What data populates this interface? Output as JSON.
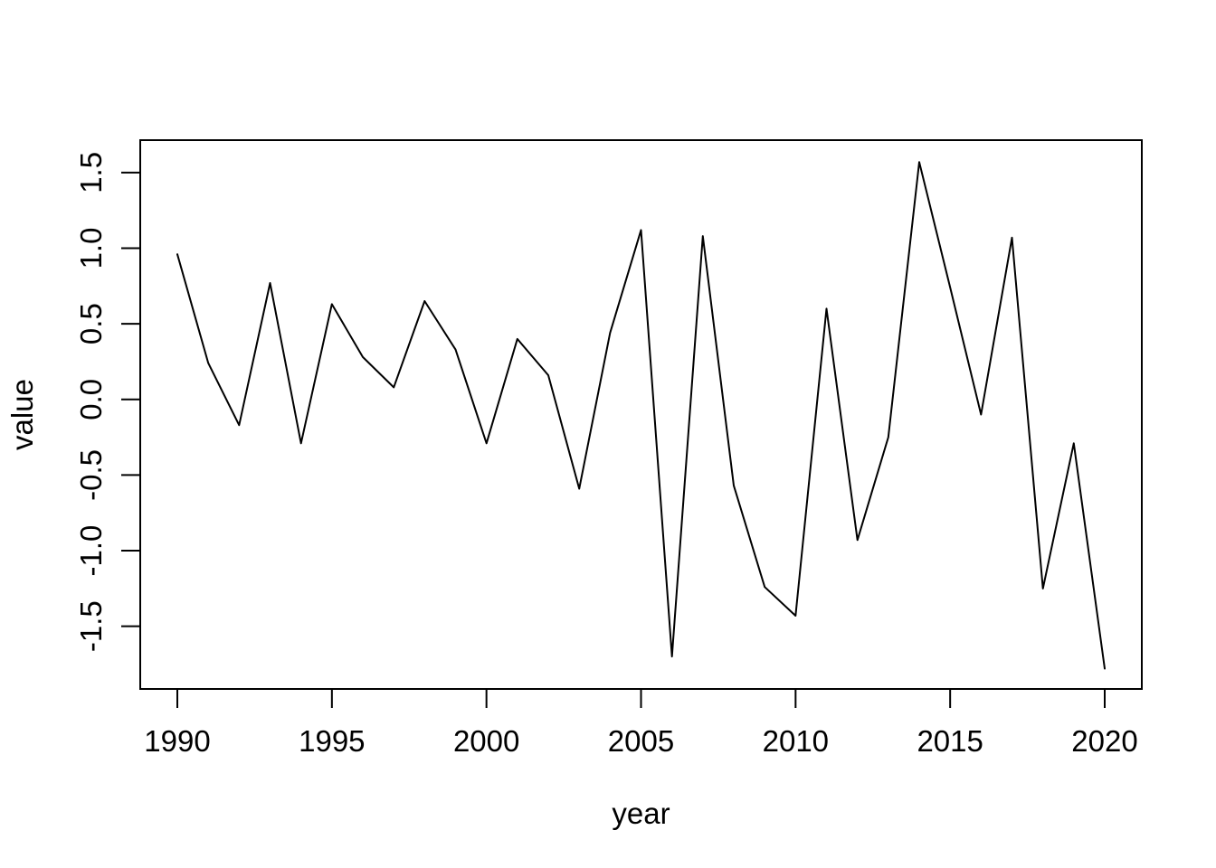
{
  "chart_data": {
    "type": "line",
    "title": "",
    "xlabel": "year",
    "ylabel": "value",
    "x": [
      1990,
      1991,
      1992,
      1993,
      1994,
      1995,
      1996,
      1997,
      1998,
      1999,
      2000,
      2001,
      2002,
      2003,
      2004,
      2005,
      2006,
      2007,
      2008,
      2009,
      2010,
      2011,
      2012,
      2013,
      2014,
      2015,
      2016,
      2017,
      2018,
      2019,
      2020
    ],
    "values": [
      0.96,
      0.24,
      -0.17,
      0.77,
      -0.29,
      0.63,
      0.28,
      0.08,
      0.65,
      0.33,
      -0.29,
      0.4,
      0.16,
      -0.59,
      0.44,
      1.12,
      -1.7,
      1.08,
      -0.57,
      -1.24,
      -1.43,
      0.6,
      -0.93,
      -0.25,
      1.57,
      0.74,
      -0.1,
      1.07,
      -1.25,
      -0.29,
      -1.78
    ],
    "x_ticks": [
      1990,
      1995,
      2000,
      2005,
      2010,
      2015,
      2020
    ],
    "x_tick_labels": [
      "1990",
      "1995",
      "2000",
      "2005",
      "2010",
      "2015",
      "2020"
    ],
    "y_ticks": [
      -1.5,
      -1.0,
      -0.5,
      0.0,
      0.5,
      1.0,
      1.5
    ],
    "y_tick_labels": [
      "-1.5",
      "-1.0",
      "-0.5",
      "0.0",
      "0.5",
      "1.0",
      "1.5"
    ],
    "xlim": [
      1988.8,
      2021.2
    ],
    "ylim": [
      -1.9144,
      1.7144
    ],
    "grid": false,
    "legend_position": "none",
    "line_color": "#000000",
    "axis_color": "#000000",
    "background_color": "#ffffff"
  }
}
